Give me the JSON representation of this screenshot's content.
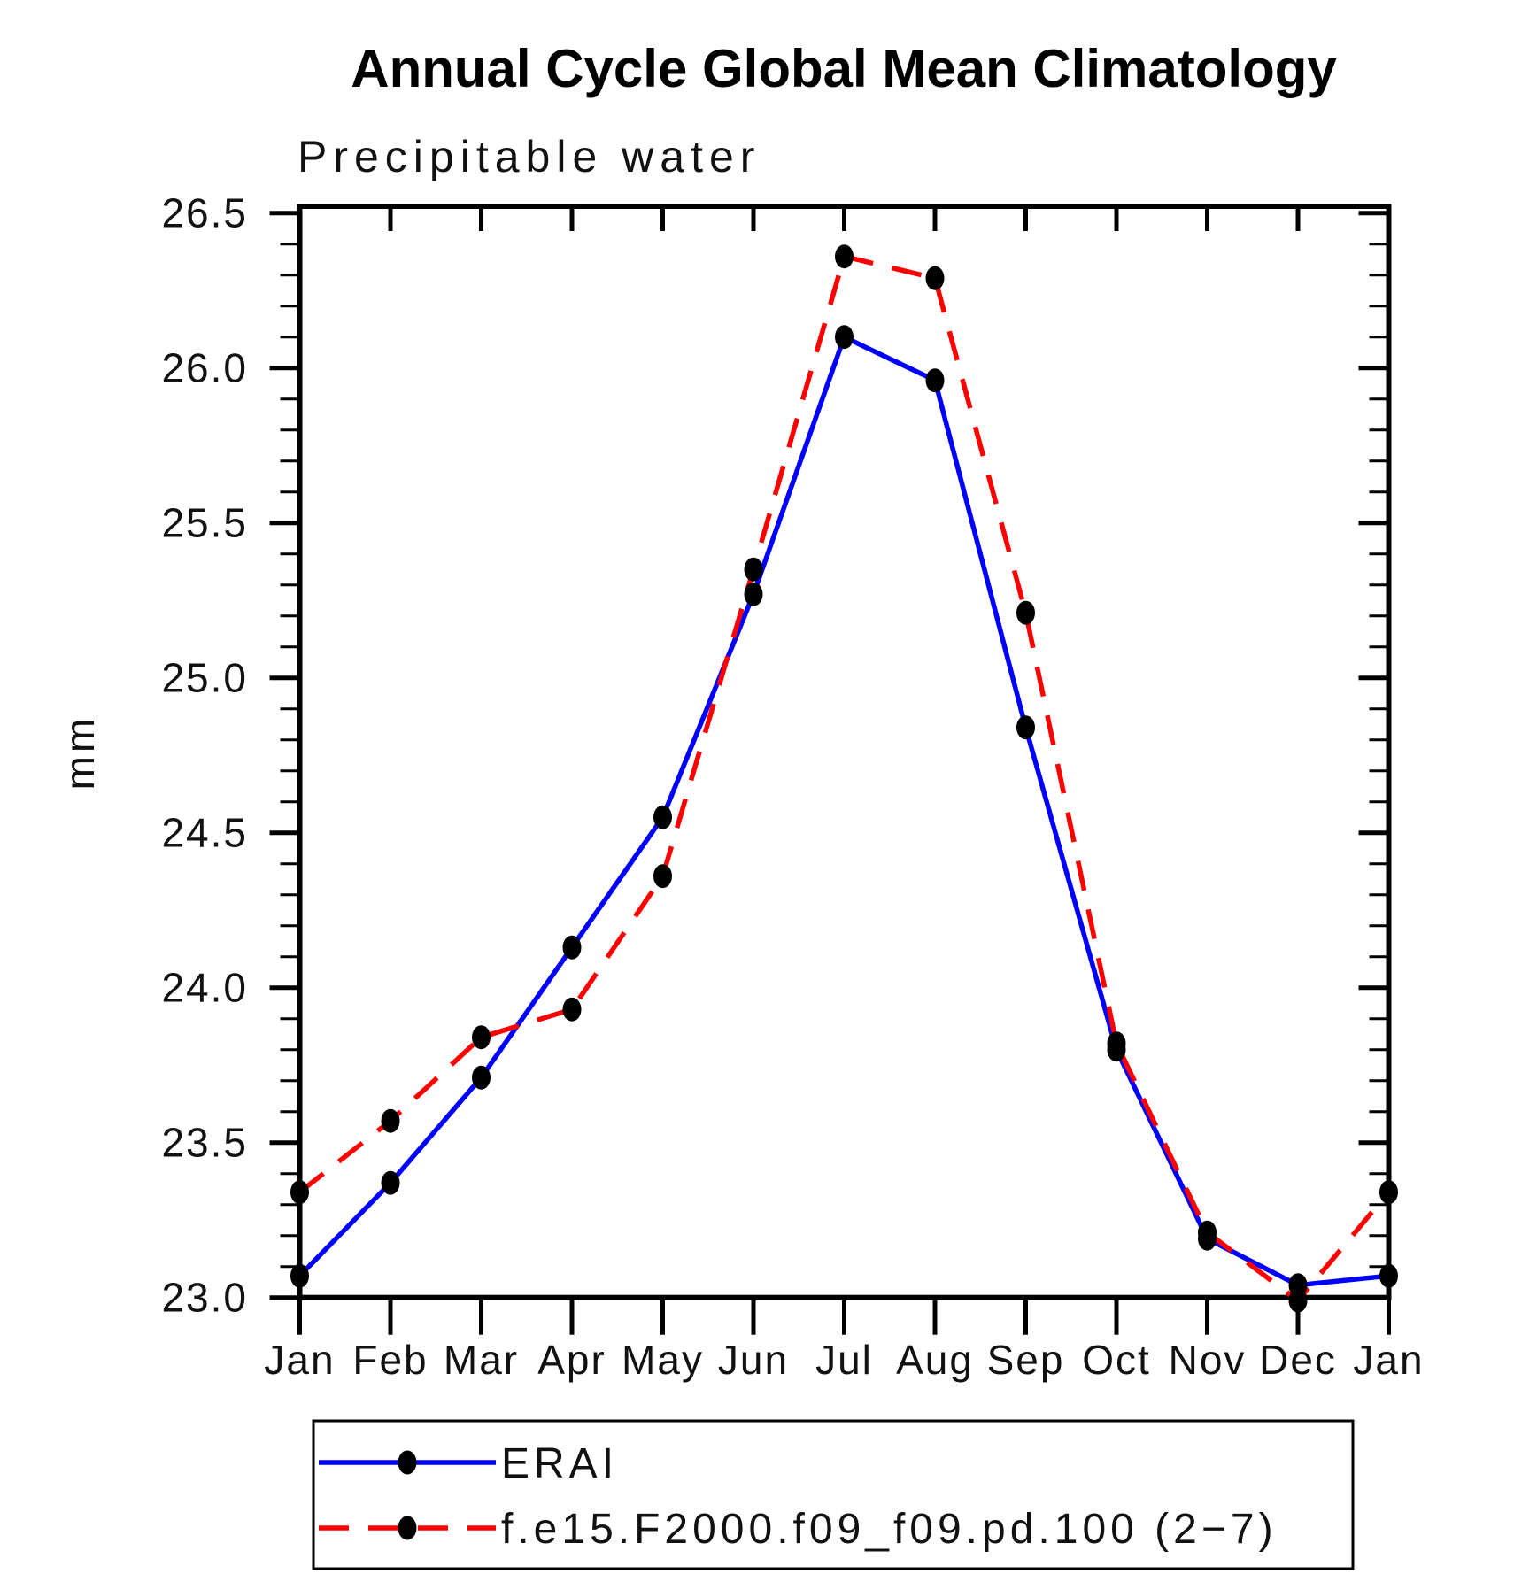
{
  "page": {
    "background": "#ffffff"
  },
  "title": "Annual Cycle Global Mean Climatology",
  "subtitle": "Precipitable water",
  "y_axis_label": "mm",
  "legend": {
    "position": "bottom",
    "entries": [
      {
        "label": "ERAI",
        "line_color": "#0000ff",
        "line_style": "solid",
        "marker": "filled-circle",
        "marker_color": "#000000"
      },
      {
        "label": "f.e15.F2000.f09_f09.pd.100 (2−7)",
        "line_color": "#ff0000",
        "line_style": "dashed",
        "marker": "filled-circle",
        "marker_color": "#000000"
      }
    ]
  },
  "chart_data": {
    "type": "line",
    "title": "Annual Cycle Global Mean Climatology",
    "subtitle": "Precipitable water",
    "xlabel": "",
    "ylabel": "mm",
    "categories": [
      "Jan",
      "Feb",
      "Mar",
      "Apr",
      "May",
      "Jun",
      "Jul",
      "Aug",
      "Sep",
      "Oct",
      "Nov",
      "Dec",
      "Jan"
    ],
    "series": [
      {
        "name": "ERAI",
        "color": "#0000ff",
        "line_style": "solid",
        "marker": "circle",
        "marker_color": "#000000",
        "values": [
          23.07,
          23.37,
          23.71,
          24.13,
          24.55,
          25.27,
          26.1,
          25.96,
          24.84,
          23.8,
          23.19,
          23.04,
          23.07
        ]
      },
      {
        "name": "f.e15.F2000.f09_f09.pd.100 (2−7)",
        "color": "#ff0000",
        "line_style": "dashed",
        "marker": "circle",
        "marker_color": "#000000",
        "values": [
          23.34,
          23.57,
          23.84,
          23.93,
          24.36,
          25.35,
          26.36,
          26.29,
          25.21,
          23.82,
          23.21,
          22.99,
          23.34
        ]
      }
    ],
    "ylim": [
      23.0,
      26.52
    ],
    "ytick_interval": 0.5,
    "ytick_minor_interval": 0.1,
    "ytick_labels": [
      "23.0",
      "23.5",
      "24.0",
      "24.5",
      "25.0",
      "25.5",
      "26.0",
      "26.5"
    ],
    "grid": false,
    "legend_position": "bottom"
  }
}
